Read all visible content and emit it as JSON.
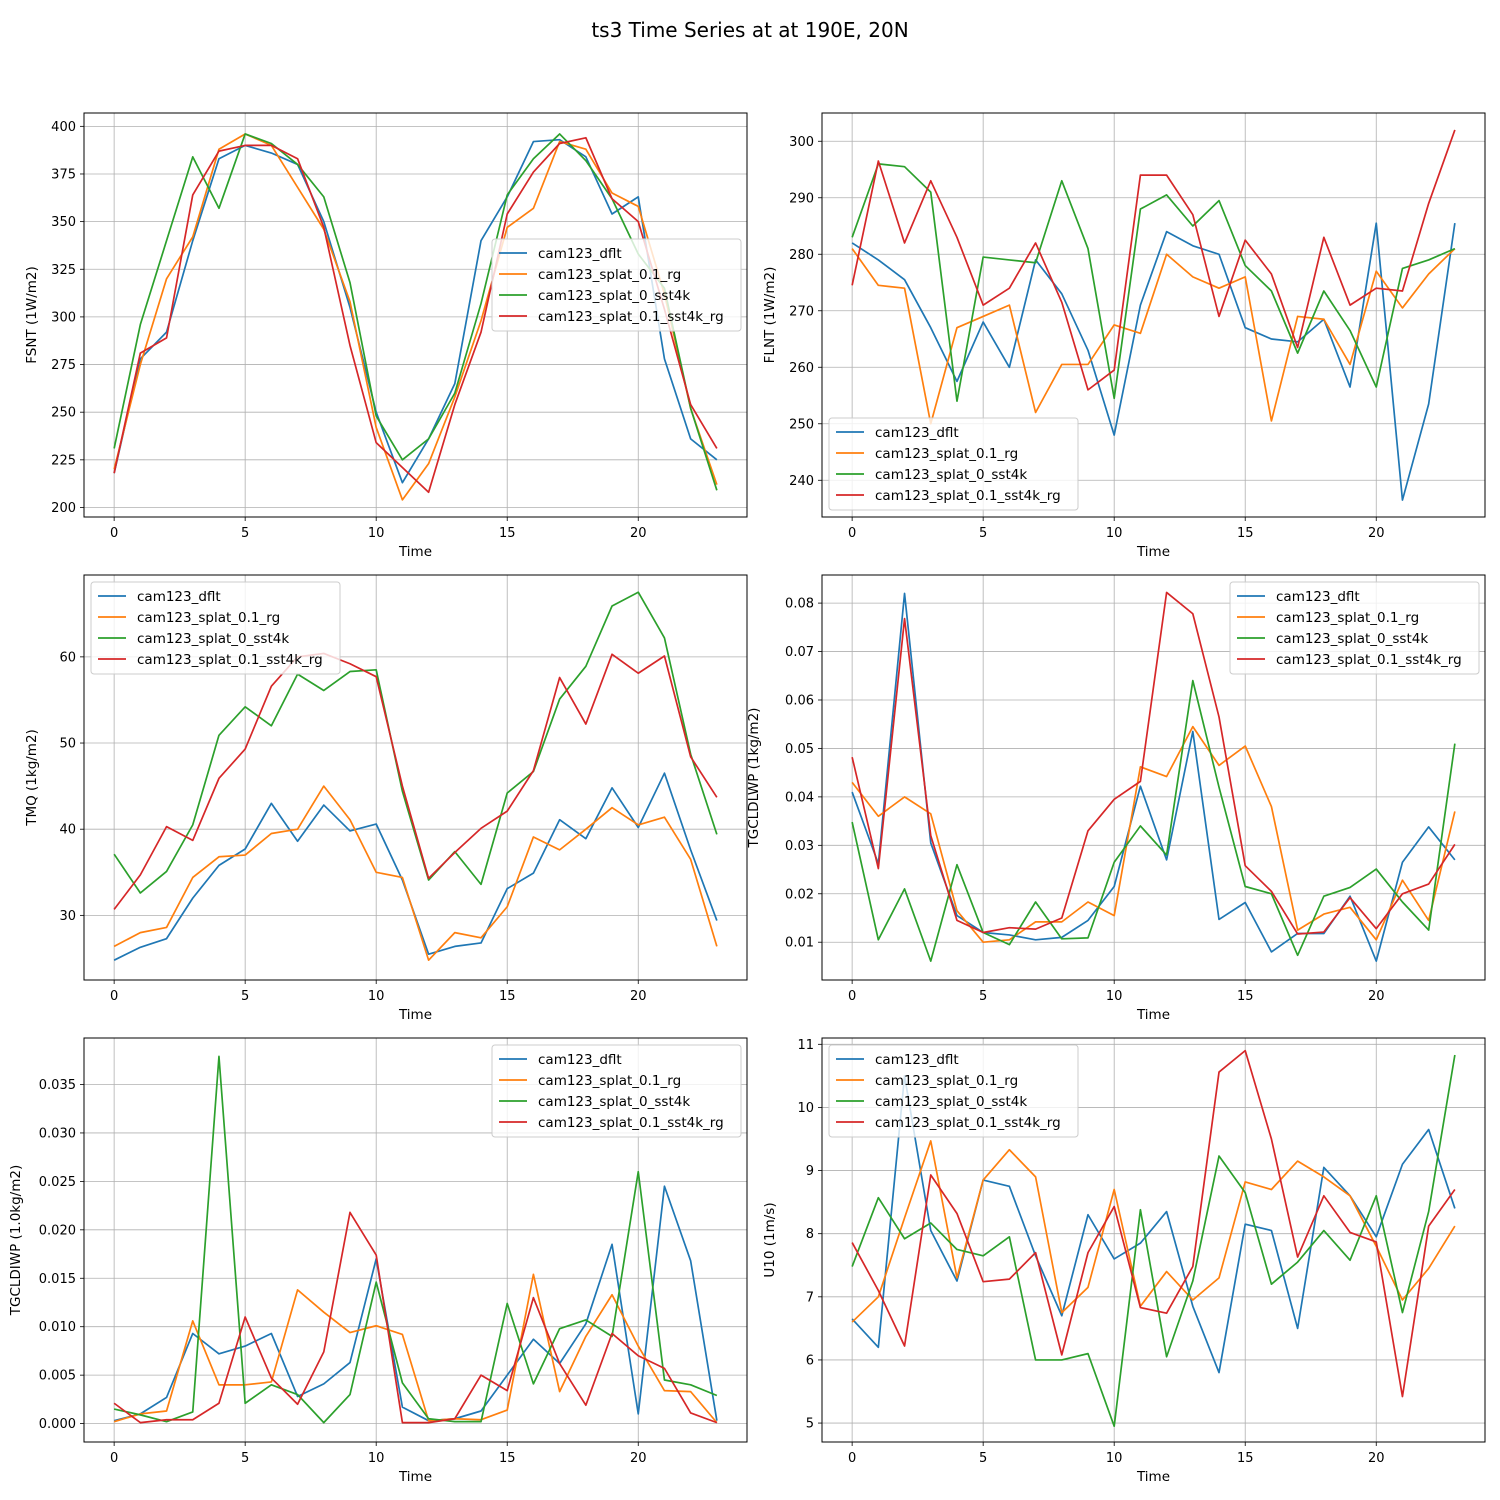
{
  "title": "ts3 Time Series at at 190E, 20N",
  "colors": {
    "cam123_dflt": "#1f77b4",
    "cam123_splat_0.1_rg": "#ff7f0e",
    "cam123_splat_0_sst4k": "#2ca02c",
    "cam123_splat_0.1_sst4k_rg": "#d62728"
  },
  "chart_data": [
    {
      "type": "line",
      "xlabel": "Time",
      "ylabel": "FSNT (1W/m2)",
      "xlim": [
        -1.15,
        24.15
      ],
      "ylim": [
        195,
        407
      ],
      "xticks": [
        0,
        5,
        10,
        15,
        20
      ],
      "yticks": [
        200,
        225,
        250,
        275,
        300,
        325,
        350,
        375,
        400
      ],
      "ytick_decimals": 0,
      "grid": true,
      "legend": "center-right",
      "series": [
        {
          "name": "cam123_dflt",
          "values": [
            218,
            278,
            292,
            340,
            383,
            390,
            386,
            380,
            350,
            305,
            250,
            213,
            236,
            265,
            340,
            363,
            392,
            393,
            384,
            354,
            363,
            278,
            236,
            225
          ]
        },
        {
          "name": "cam123_splat_0.1_rg",
          "values": [
            220,
            275,
            320,
            342,
            388,
            396,
            390,
            368,
            346,
            308,
            242,
            204,
            223,
            258,
            298,
            347,
            357,
            392,
            388,
            365,
            358,
            312,
            252,
            212
          ]
        },
        {
          "name": "cam123_splat_0_sst4k",
          "values": [
            231,
            296,
            340,
            384,
            357,
            396,
            391,
            380,
            363,
            318,
            248,
            225,
            236,
            260,
            307,
            364,
            383,
            396,
            382,
            362,
            333,
            315,
            252,
            209
          ]
        },
        {
          "name": "cam123_splat_0.1_sst4k_rg",
          "values": [
            218,
            281,
            289,
            364,
            387,
            390,
            390,
            383,
            347,
            285,
            234,
            221,
            208,
            254,
            292,
            354,
            376,
            391,
            394,
            362,
            350,
            304,
            254,
            231
          ]
        }
      ]
    },
    {
      "type": "line",
      "xlabel": "Time",
      "ylabel": "FLNT (1W/m2)",
      "xlim": [
        -1.15,
        24.15
      ],
      "ylim": [
        233.5,
        305
      ],
      "xticks": [
        0,
        5,
        10,
        15,
        20
      ],
      "yticks": [
        240,
        250,
        260,
        270,
        280,
        290,
        300
      ],
      "ytick_decimals": 0,
      "grid": true,
      "legend": "bottom-left",
      "series": [
        {
          "name": "cam123_dflt",
          "values": [
            282,
            279,
            275.5,
            267,
            257.5,
            268,
            260,
            279,
            273,
            263,
            248,
            271,
            284,
            281.5,
            280,
            267,
            265,
            264.5,
            268.5,
            256.5,
            285.5,
            236.5,
            253.5,
            285.5
          ]
        },
        {
          "name": "cam123_splat_0.1_rg",
          "values": [
            281,
            274.5,
            274,
            250,
            267,
            269,
            271,
            252,
            260.5,
            260.5,
            267.5,
            266,
            280,
            276,
            274,
            276,
            250.5,
            269,
            268.5,
            260.5,
            277,
            270.5,
            276.5,
            281
          ]
        },
        {
          "name": "cam123_splat_0_sst4k",
          "values": [
            283,
            296,
            295.5,
            291,
            254,
            279.5,
            279,
            278.5,
            293,
            281,
            254.5,
            288,
            290.5,
            285,
            289.5,
            278,
            273.5,
            262.5,
            273.5,
            266.5,
            256.5,
            277.5,
            279,
            281
          ]
        },
        {
          "name": "cam123_splat_0.1_sst4k_rg",
          "values": [
            274.5,
            296.5,
            282,
            293,
            283,
            271,
            274,
            282,
            271.5,
            256,
            259.5,
            294,
            294,
            287,
            269,
            282.5,
            276.5,
            263.5,
            283,
            271,
            274,
            273.5,
            289,
            302
          ]
        }
      ]
    },
    {
      "type": "line",
      "xlabel": "Time",
      "ylabel": "TMQ (1kg/m2)",
      "xlim": [
        -1.15,
        24.15
      ],
      "ylim": [
        22.5,
        69.5
      ],
      "xticks": [
        0,
        5,
        10,
        15,
        20
      ],
      "yticks": [
        30,
        40,
        50,
        60
      ],
      "ytick_decimals": 0,
      "grid": true,
      "legend": "top-left",
      "series": [
        {
          "name": "cam123_dflt",
          "values": [
            24.8,
            26.3,
            27.3,
            32.0,
            35.8,
            37.7,
            43.0,
            38.6,
            42.8,
            39.8,
            40.6,
            34.1,
            25.5,
            26.4,
            26.8,
            33.1,
            34.9,
            41.1,
            38.9,
            44.8,
            40.2,
            46.5,
            37.6,
            29.4
          ]
        },
        {
          "name": "cam123_splat_0.1_rg",
          "values": [
            26.4,
            28.0,
            28.6,
            34.4,
            36.8,
            37.0,
            39.5,
            40.0,
            45.0,
            41.1,
            35.0,
            34.4,
            24.8,
            28.0,
            27.4,
            31.0,
            39.1,
            37.6,
            40.0,
            42.5,
            40.5,
            41.4,
            36.5,
            26.4
          ]
        },
        {
          "name": "cam123_splat_0_sst4k",
          "values": [
            37.1,
            32.6,
            35.1,
            40.5,
            50.9,
            54.2,
            52.0,
            58.0,
            56.1,
            58.3,
            58.5,
            44.4,
            34.1,
            37.4,
            33.6,
            44.2,
            46.7,
            55.1,
            58.9,
            65.9,
            67.5,
            62.2,
            48.7,
            39.4
          ]
        },
        {
          "name": "cam123_splat_0.1_sst4k_rg",
          "values": [
            30.7,
            34.7,
            40.3,
            38.7,
            45.9,
            49.3,
            56.6,
            60.0,
            60.4,
            59.2,
            57.7,
            45.0,
            34.3,
            37.3,
            40.1,
            42.1,
            46.8,
            57.6,
            52.2,
            60.3,
            58.1,
            60.1,
            48.4,
            43.7
          ]
        }
      ]
    },
    {
      "type": "line",
      "xlabel": "Time",
      "ylabel": "TGCLDLWP (1kg/m2)",
      "xlim": [
        -1.15,
        24.15
      ],
      "ylim": [
        0.0022,
        0.0858
      ],
      "xticks": [
        0,
        5,
        10,
        15,
        20
      ],
      "yticks": [
        0.01,
        0.02,
        0.03,
        0.04,
        0.05,
        0.06,
        0.07,
        0.08
      ],
      "ytick_decimals": 2,
      "grid": true,
      "legend": "top-right",
      "series": [
        {
          "name": "cam123_dflt",
          "values": [
            0.041,
            0.0262,
            0.082,
            0.0305,
            0.0155,
            0.012,
            0.0115,
            0.0105,
            0.011,
            0.0145,
            0.0215,
            0.0422,
            0.027,
            0.0535,
            0.0147,
            0.0182,
            0.008,
            0.0118,
            0.0118,
            0.0195,
            0.0061,
            0.0265,
            0.0338,
            0.027
          ]
        },
        {
          "name": "cam123_splat_0.1_rg",
          "values": [
            0.043,
            0.036,
            0.04,
            0.0365,
            0.0165,
            0.01,
            0.0105,
            0.0142,
            0.0142,
            0.0183,
            0.0155,
            0.0462,
            0.0442,
            0.0545,
            0.0465,
            0.0505,
            0.038,
            0.0125,
            0.0158,
            0.0172,
            0.0105,
            0.0228,
            0.0145,
            0.037
          ]
        },
        {
          "name": "cam123_splat_0_sst4k",
          "values": [
            0.0348,
            0.0105,
            0.021,
            0.0061,
            0.026,
            0.012,
            0.0095,
            0.0183,
            0.0107,
            0.0109,
            0.0265,
            0.034,
            0.028,
            0.064,
            0.042,
            0.0215,
            0.02,
            0.0073,
            0.0195,
            0.0213,
            0.0251,
            0.0183,
            0.0125,
            0.051
          ]
        },
        {
          "name": "cam123_splat_0.1_sst4k_rg",
          "values": [
            0.0482,
            0.0252,
            0.0768,
            0.032,
            0.0145,
            0.012,
            0.013,
            0.0127,
            0.015,
            0.033,
            0.0395,
            0.0432,
            0.0822,
            0.0778,
            0.0565,
            0.0258,
            0.0205,
            0.0117,
            0.0121,
            0.0192,
            0.0128,
            0.02,
            0.022,
            0.0302
          ]
        }
      ]
    },
    {
      "type": "line",
      "xlabel": "Time",
      "ylabel": "TGCLDIWP (1.0kg/m2)",
      "xlim": [
        -1.15,
        24.15
      ],
      "ylim": [
        -0.0019,
        0.0398
      ],
      "xticks": [
        0,
        5,
        10,
        15,
        20
      ],
      "yticks": [
        0.0,
        0.005,
        0.01,
        0.015,
        0.02,
        0.025,
        0.03,
        0.035
      ],
      "ytick_decimals": 3,
      "grid": true,
      "legend": "top-right",
      "series": [
        {
          "name": "cam123_dflt",
          "values": [
            0.0003,
            0.001,
            0.0027,
            0.0093,
            0.0072,
            0.008,
            0.0093,
            0.0028,
            0.0041,
            0.0063,
            0.017,
            0.0017,
            0.0003,
            0.0005,
            0.0013,
            0.005,
            0.0087,
            0.0062,
            0.0103,
            0.0185,
            0.001,
            0.0245,
            0.0168,
            0.0003
          ]
        },
        {
          "name": "cam123_splat_0.1_rg",
          "values": [
            0.0002,
            0.001,
            0.0013,
            0.0106,
            0.004,
            0.004,
            0.0043,
            0.0138,
            0.0115,
            0.0094,
            0.0101,
            0.0092,
            0.0003,
            0.0005,
            0.0004,
            0.0014,
            0.0154,
            0.0033,
            0.009,
            0.0133,
            0.008,
            0.0034,
            0.0033,
            0.0001
          ]
        },
        {
          "name": "cam123_splat_0_sst4k",
          "values": [
            0.0015,
            0.0009,
            0.0002,
            0.0012,
            0.0379,
            0.0021,
            0.004,
            0.003,
            0.0001,
            0.003,
            0.0146,
            0.0042,
            0.0005,
            0.0002,
            0.0002,
            0.0124,
            0.0041,
            0.0098,
            0.0107,
            0.009,
            0.026,
            0.0045,
            0.004,
            0.0029
          ]
        },
        {
          "name": "cam123_splat_0.1_sst4k_rg",
          "values": [
            0.0021,
            0.0001,
            0.0004,
            0.0004,
            0.0021,
            0.011,
            0.0047,
            0.002,
            0.0074,
            0.0218,
            0.0174,
            0.0001,
            0.0001,
            0.0005,
            0.005,
            0.0034,
            0.013,
            0.0062,
            0.0019,
            0.0093,
            0.007,
            0.0057,
            0.0011,
            0.0001
          ]
        }
      ]
    },
    {
      "type": "line",
      "xlabel": "Time",
      "ylabel": "U10 (1m/s)",
      "xlim": [
        -1.15,
        24.15
      ],
      "ylim": [
        4.7,
        11.1
      ],
      "xticks": [
        0,
        5,
        10,
        15,
        20
      ],
      "yticks": [
        5,
        6,
        7,
        8,
        9,
        10,
        11
      ],
      "ytick_decimals": 0,
      "grid": true,
      "legend": "top-left",
      "series": [
        {
          "name": "cam123_dflt",
          "values": [
            6.65,
            6.2,
            10.5,
            8.05,
            7.25,
            8.85,
            8.75,
            7.65,
            6.7,
            8.3,
            7.6,
            7.85,
            8.35,
            6.85,
            5.8,
            8.15,
            8.05,
            6.5,
            9.05,
            8.6,
            7.95,
            9.1,
            9.65,
            8.4
          ]
        },
        {
          "name": "cam123_splat_0.1_rg",
          "values": [
            6.6,
            7.0,
            8.25,
            9.47,
            7.3,
            8.85,
            9.33,
            8.9,
            6.75,
            7.15,
            8.7,
            6.85,
            7.4,
            6.95,
            7.3,
            8.82,
            8.7,
            9.15,
            8.9,
            8.6,
            7.8,
            6.95,
            7.45,
            8.12
          ]
        },
        {
          "name": "cam123_splat_0_sst4k",
          "values": [
            7.48,
            8.57,
            7.92,
            8.17,
            7.75,
            7.65,
            7.95,
            6.0,
            6.0,
            6.1,
            4.95,
            8.38,
            6.05,
            7.25,
            9.23,
            8.65,
            7.2,
            7.55,
            8.05,
            7.58,
            8.6,
            6.75,
            8.35,
            10.83
          ]
        },
        {
          "name": "cam123_splat_0.1_sst4k_rg",
          "values": [
            7.86,
            7.1,
            6.22,
            8.93,
            8.32,
            7.24,
            7.28,
            7.7,
            6.08,
            7.7,
            8.43,
            6.83,
            6.74,
            7.48,
            10.56,
            10.9,
            9.5,
            7.63,
            8.6,
            8.02,
            7.87,
            5.42,
            8.12,
            8.7
          ]
        }
      ]
    }
  ]
}
